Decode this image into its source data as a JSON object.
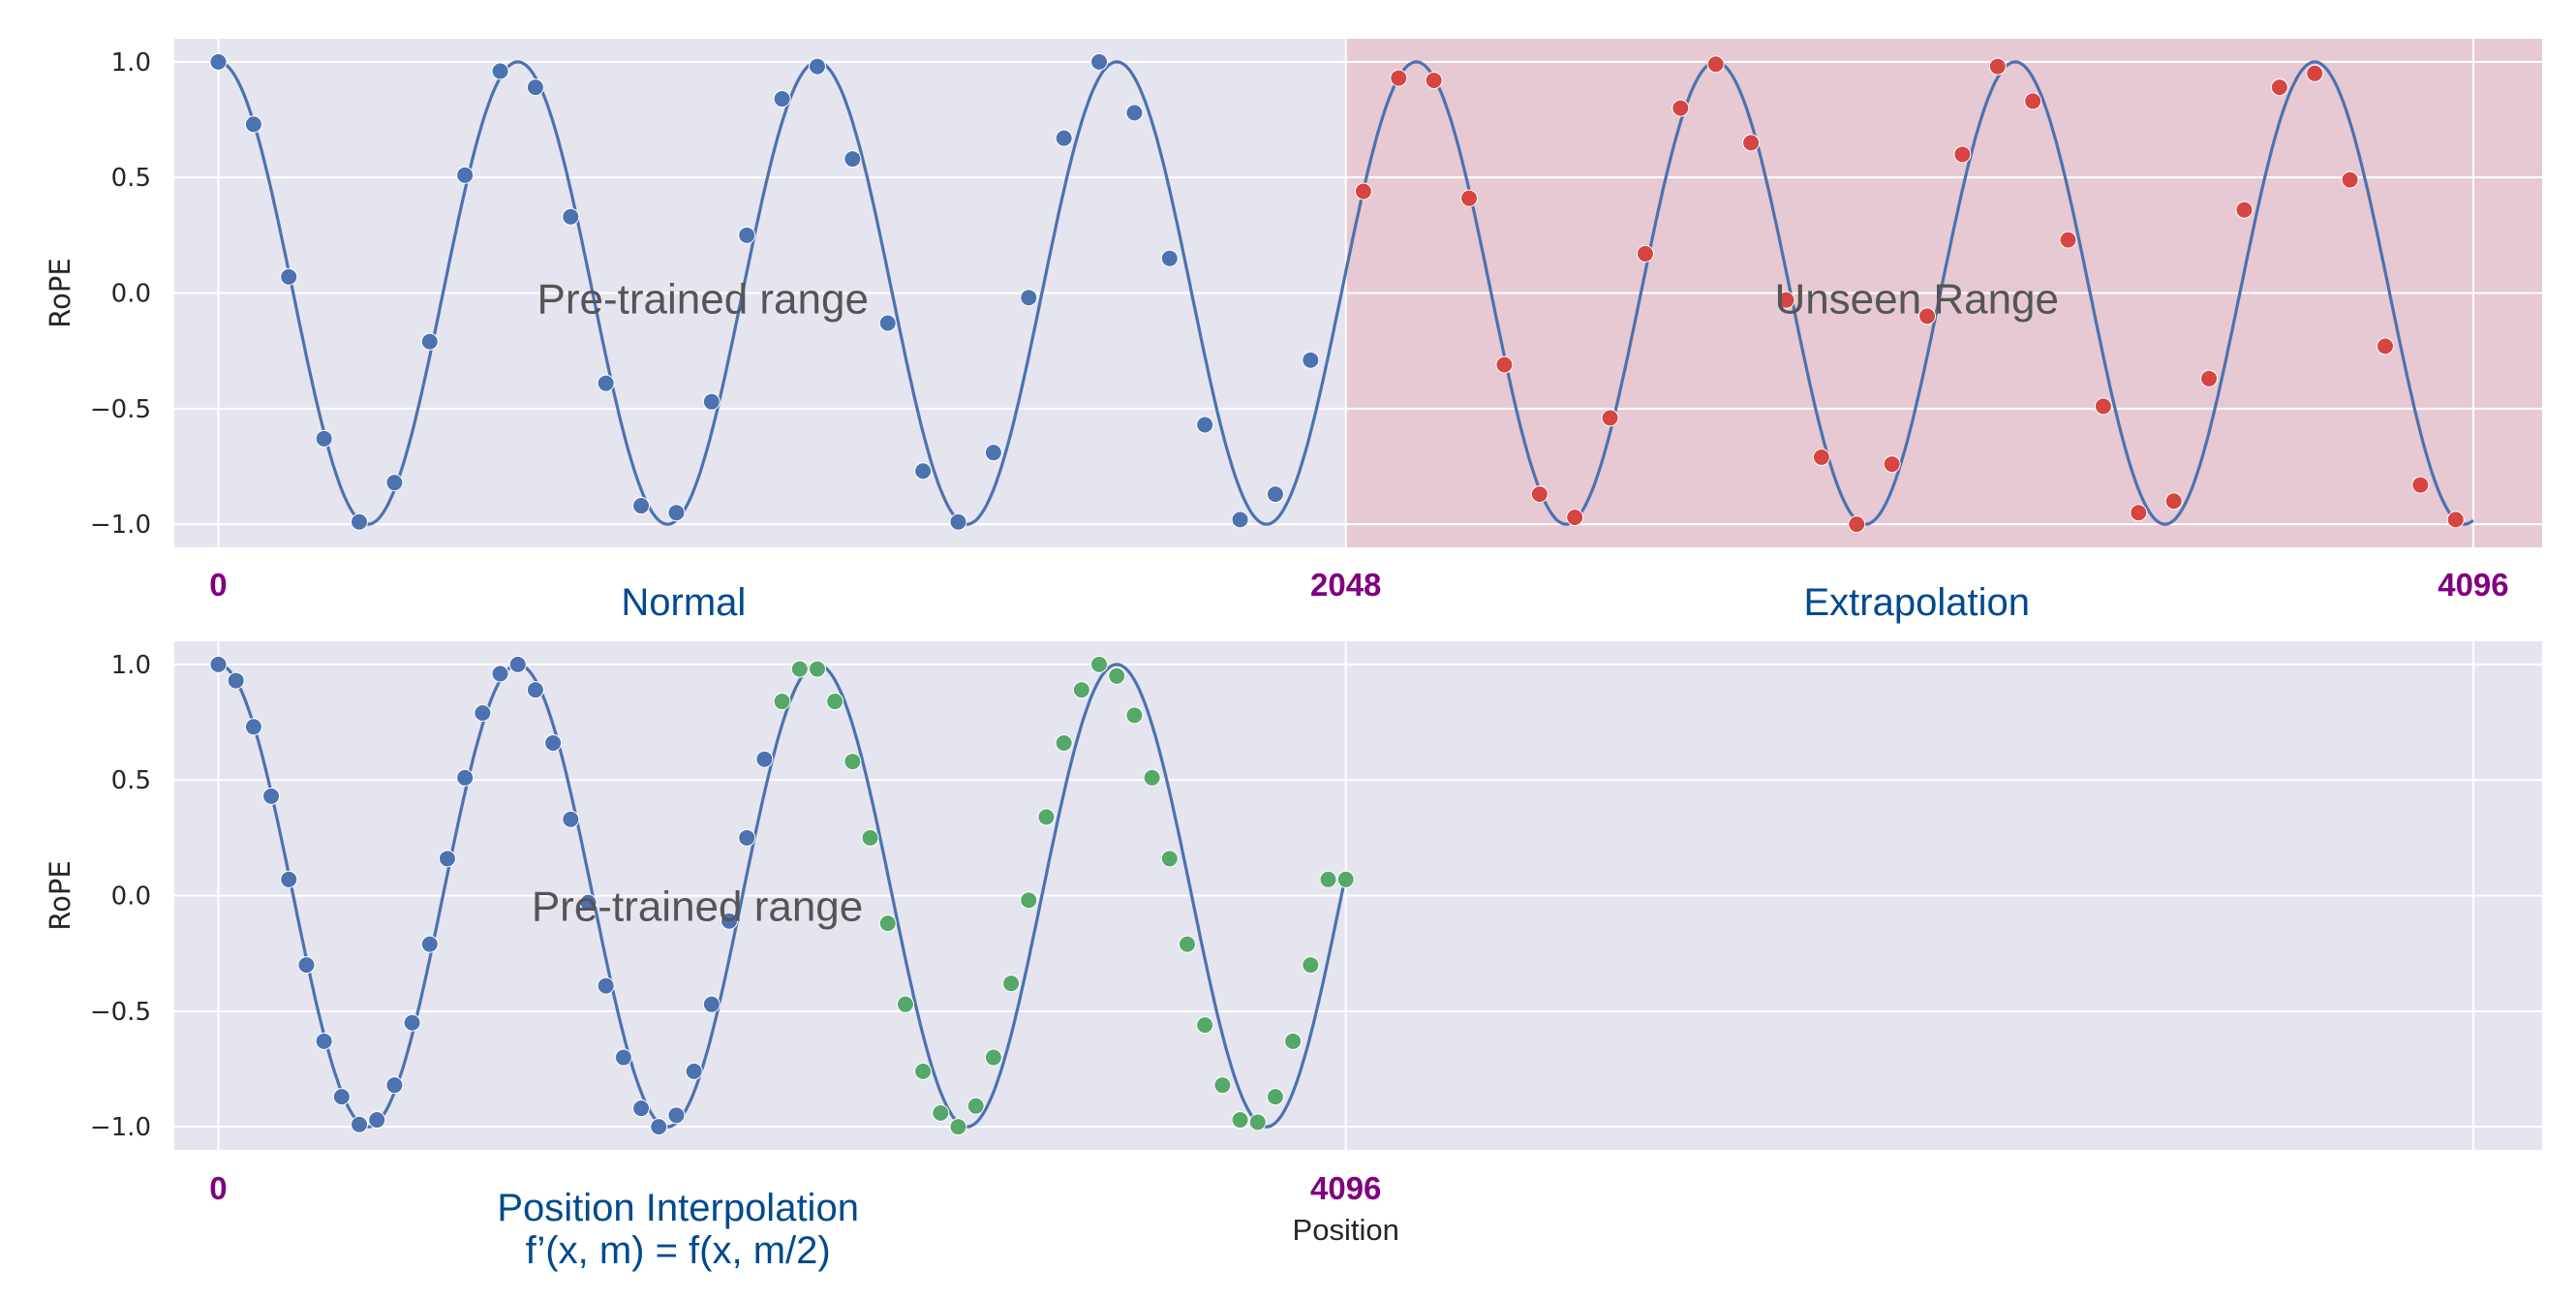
{
  "chart_data": [
    {
      "type": "line",
      "ylabel": "RoPE",
      "xlim": [
        -80,
        4221
      ],
      "ylim": [
        -1.1,
        1.1
      ],
      "yticks": [
        1.0,
        0.5,
        0.0,
        -0.5,
        -1.0
      ],
      "ytick_labels": [
        "1.0",
        "0.5",
        "0.0",
        "−0.5",
        "−1.0"
      ],
      "grid": true,
      "curve": {
        "function": "cos",
        "period": 544,
        "amplitude": 1,
        "range": [
          0,
          4096
        ]
      },
      "series": [
        {
          "color": "#4c72b0",
          "x": [
            0,
            64,
            128,
            192,
            256,
            320,
            384,
            448,
            512,
            576,
            640,
            704,
            768,
            832,
            896,
            960,
            1024,
            1088,
            1152,
            1216,
            1280,
            1344,
            1408,
            1472,
            1536,
            1600,
            1664,
            1728,
            1792,
            1856,
            1920,
            1984
          ],
          "y": [
            1.0,
            0.73,
            0.07,
            -0.63,
            -0.99,
            -0.82,
            -0.21,
            0.51,
            0.96,
            0.89,
            0.33,
            -0.39,
            -0.92,
            -0.95,
            -0.47,
            0.25,
            0.84,
            0.98,
            0.58,
            -0.13,
            -0.77,
            -0.99,
            -0.69,
            -0.02,
            0.67,
            1.0,
            0.78,
            0.15,
            -0.57,
            -0.98,
            -0.87,
            -0.29
          ]
        },
        {
          "color": "#d64541",
          "x": [
            2080,
            2144,
            2208,
            2272,
            2336,
            2400,
            2464,
            2528,
            2592,
            2656,
            2720,
            2784,
            2848,
            2912,
            2976,
            3040,
            3104,
            3168,
            3232,
            3296,
            3360,
            3424,
            3488,
            3552,
            3616,
            3680,
            3744,
            3808,
            3872,
            3936,
            4000,
            4064
          ],
          "y": [
            0.44,
            0.93,
            0.92,
            0.41,
            -0.31,
            -0.87,
            -0.97,
            -0.54,
            0.17,
            0.8,
            0.99,
            0.65,
            -0.03,
            -0.71,
            -1.0,
            -0.74,
            -0.1,
            0.6,
            0.98,
            0.83,
            0.23,
            -0.49,
            -0.95,
            -0.9,
            -0.37,
            0.36,
            0.89,
            0.95,
            0.49,
            -0.23,
            -0.83,
            -0.98
          ]
        }
      ],
      "shaded_region": {
        "x_range": [
          2048,
          4221
        ],
        "label": "Unseen Range",
        "color": "#e8a0a8"
      },
      "annotations": [
        {
          "text": "Pre-trained range",
          "x": 880,
          "y": -0.03
        },
        {
          "text": "Unseen Range",
          "x": 3085,
          "y": -0.03
        }
      ],
      "below_axis_labels": {
        "positions": [
          {
            "text": "0",
            "x": 0
          },
          {
            "text": "2048",
            "x": 2048
          },
          {
            "text": "4096",
            "x": 4096
          }
        ],
        "captions": [
          {
            "text": "Normal",
            "x": 845
          },
          {
            "text": "Extrapolation",
            "x": 3085
          }
        ]
      }
    },
    {
      "type": "line",
      "ylabel": "RoPE",
      "xlabel": "Position",
      "xlim": [
        -80,
        4221
      ],
      "ylim": [
        -1.1,
        1.1
      ],
      "yticks": [
        1.0,
        0.5,
        0.0,
        -0.5,
        -1.0
      ],
      "ytick_labels": [
        "1.0",
        "0.5",
        "0.0",
        "−0.5",
        "−1.0"
      ],
      "grid": true,
      "curve": {
        "function": "cos",
        "period": 544,
        "amplitude": 1,
        "range": [
          0,
          2048
        ]
      },
      "series": [
        {
          "color": "#4c72b0",
          "x": [
            0,
            32,
            64,
            96,
            128,
            160,
            192,
            224,
            256,
            288,
            320,
            352,
            384,
            416,
            448,
            480,
            512,
            544,
            576,
            608,
            640,
            672,
            704,
            736,
            768,
            800,
            832,
            864,
            896,
            928,
            960,
            992
          ],
          "y": [
            1.0,
            0.93,
            0.73,
            0.43,
            0.07,
            -0.3,
            -0.63,
            -0.87,
            -0.99,
            -0.97,
            -0.82,
            -0.55,
            -0.21,
            0.16,
            0.51,
            0.79,
            0.96,
            1.0,
            0.89,
            0.66,
            0.33,
            -0.03,
            -0.39,
            -0.7,
            -0.92,
            -1.0,
            -0.95,
            -0.76,
            -0.47,
            -0.11,
            0.25,
            0.59
          ]
        },
        {
          "color": "#55a868",
          "x": [
            1024,
            1056,
            1088,
            1120,
            1152,
            1184,
            1216,
            1248,
            1280,
            1312,
            1344,
            1376,
            1408,
            1440,
            1472,
            1504,
            1536,
            1568,
            1600,
            1632,
            1664,
            1696,
            1728,
            1760,
            1792,
            1824,
            1856,
            1888,
            1920,
            1952,
            1984,
            2016,
            2048
          ],
          "y": [
            0.84,
            0.98,
            0.98,
            0.84,
            0.58,
            0.25,
            -0.12,
            -0.47,
            -0.76,
            -0.94,
            -1.0,
            -0.91,
            -0.7,
            -0.38,
            -0.02,
            0.34,
            0.66,
            0.89,
            1.0,
            0.95,
            0.78,
            0.51,
            0.16,
            -0.21,
            -0.56,
            -0.82,
            -0.97,
            -0.98,
            -0.87,
            -0.63,
            -0.3,
            0.07,
            0.07
          ]
        }
      ],
      "annotations": [
        {
          "text": "Pre-trained range",
          "x": 870,
          "y": -0.05
        }
      ],
      "below_axis_labels": {
        "positions": [
          {
            "text": "0",
            "x": 0
          },
          {
            "text": "4096",
            "x": 2048
          }
        ],
        "captions": [
          {
            "text": "Position Interpolation",
            "x": 835
          },
          {
            "text": "f’(x, m) = f(x, m/2)",
            "x": 835
          }
        ]
      }
    }
  ]
}
